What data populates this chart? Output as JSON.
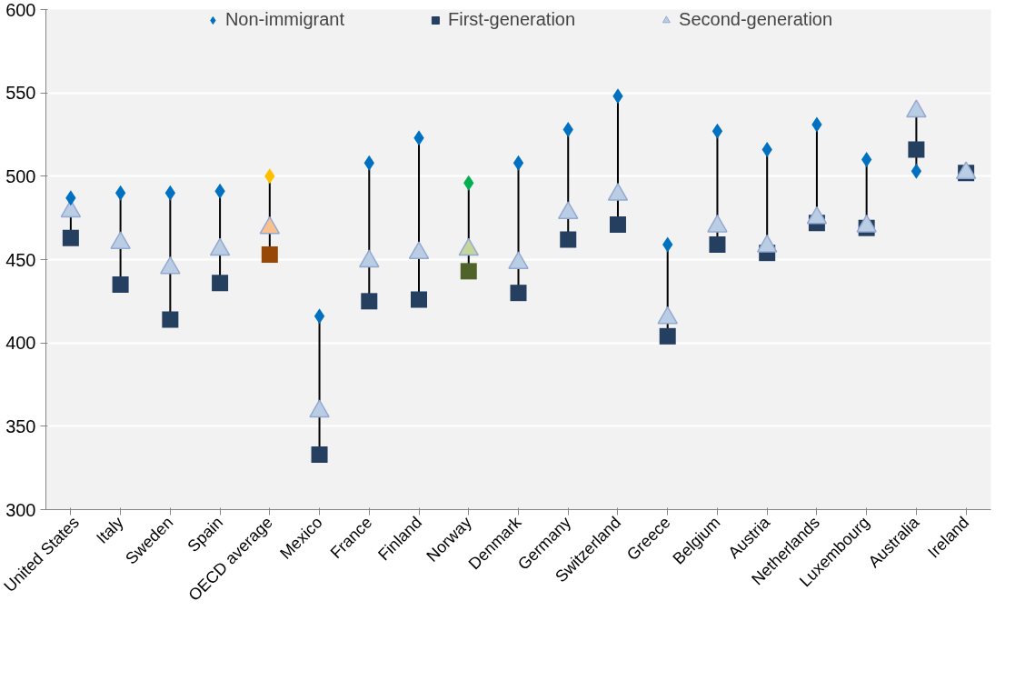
{
  "chart_data": {
    "type": "scatter",
    "categories": [
      "United States",
      "Italy",
      "Sweden",
      "Spain",
      "OECD average",
      "Mexico",
      "France",
      "Finland",
      "Norway",
      "Denmark",
      "Germany",
      "Switzerland",
      "Greece",
      "Belgium",
      "Austria",
      "Netherlands",
      "Luxembourg",
      "Australia",
      "Ireland"
    ],
    "series": [
      {
        "name": "Non-immigrant",
        "marker": "diamond",
        "color": "#0070c0",
        "colors": [
          "#0070c0",
          "#0070c0",
          "#0070c0",
          "#0070c0",
          "#ffc000",
          "#0070c0",
          "#0070c0",
          "#0070c0",
          "#00b050",
          "#0070c0",
          "#0070c0",
          "#0070c0",
          "#0070c0",
          "#0070c0",
          "#0070c0",
          "#0070c0",
          "#0070c0",
          "#0070c0",
          "#0070c0"
        ],
        "values": [
          487,
          490,
          490,
          491,
          500,
          416,
          508,
          523,
          496,
          508,
          528,
          548,
          459,
          527,
          516,
          531,
          510,
          503,
          null
        ]
      },
      {
        "name": "First-generation",
        "marker": "square",
        "color": "#243f60",
        "colors": [
          "#243f60",
          "#243f60",
          "#243f60",
          "#243f60",
          "#974706",
          "#243f60",
          "#243f60",
          "#243f60",
          "#4f6228",
          "#243f60",
          "#243f60",
          "#243f60",
          "#243f60",
          "#243f60",
          "#243f60",
          "#243f60",
          "#243f60",
          "#243f60",
          "#243f60"
        ],
        "values": [
          463,
          435,
          414,
          436,
          453,
          333,
          425,
          426,
          443,
          430,
          462,
          471,
          404,
          459,
          454,
          472,
          469,
          516,
          502
        ]
      },
      {
        "name": "Second-generation",
        "marker": "triangle",
        "color": "#b9cde5",
        "colors": [
          "#b9cde5",
          "#b9cde5",
          "#b9cde5",
          "#b9cde5",
          "#fac090",
          "#b9cde5",
          "#b9cde5",
          "#b9cde5",
          "#c3d69b",
          "#b9cde5",
          "#b9cde5",
          "#b9cde5",
          "#b9cde5",
          "#b9cde5",
          "#b9cde5",
          "#b9cde5",
          "#b9cde5",
          "#b9cde5",
          "#b9cde5"
        ],
        "values": [
          479,
          460,
          445,
          456,
          469,
          359,
          449,
          454,
          456,
          448,
          478,
          489,
          415,
          470,
          458,
          475,
          470,
          539,
          502
        ]
      }
    ],
    "ylim": [
      300,
      600
    ],
    "yticks": [
      300,
      350,
      400,
      450,
      500,
      550,
      600
    ],
    "grid": "y",
    "legend": "top"
  }
}
